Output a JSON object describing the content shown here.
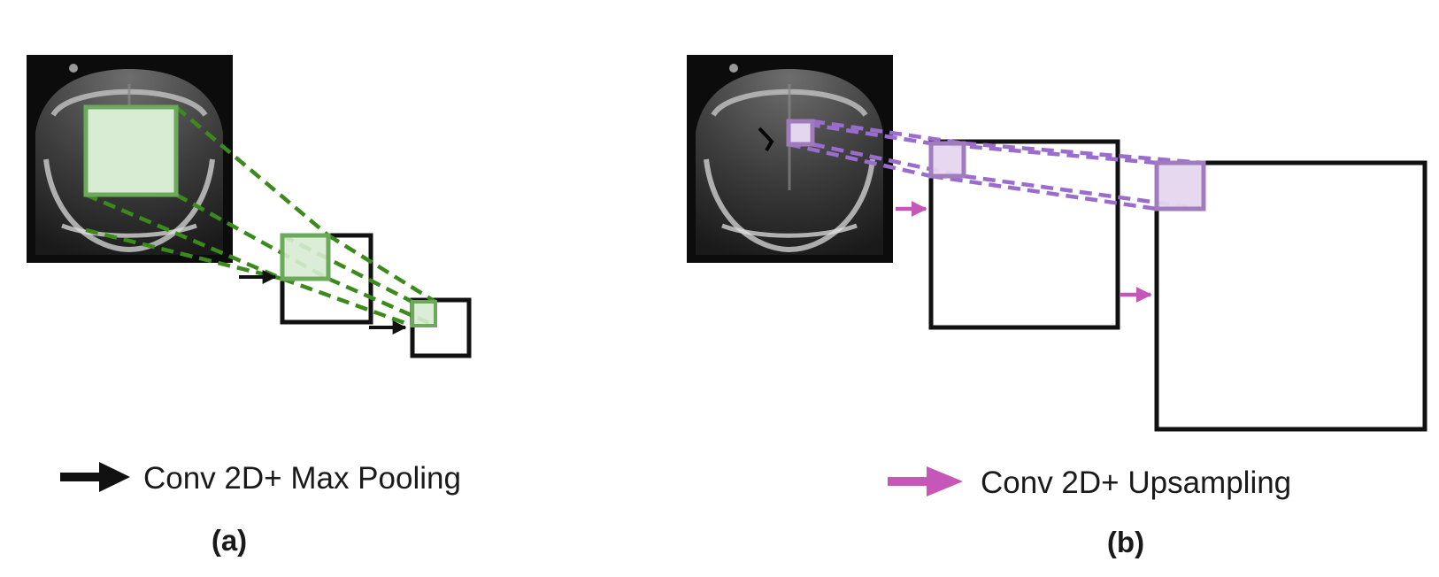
{
  "colors": {
    "green_line": "#3d8a1c",
    "green_box": "#6aaa5a",
    "green_fill": "#d8ebd3",
    "purple_line": "#9a6ccc",
    "purple_box": "#a07bbd",
    "purple_fill": "#e4d6ee",
    "pink_arrow": "#c657b8",
    "black": "#111111"
  },
  "panel_a": {
    "legend_label": "Conv 2D+ Max Pooling",
    "panel_label": "(a)"
  },
  "panel_b": {
    "legend_label": "Conv 2D+ Upsampling",
    "panel_label": "(b)"
  }
}
